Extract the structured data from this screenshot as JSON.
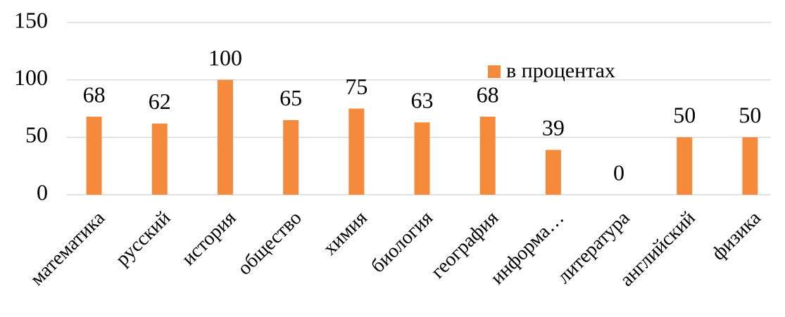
{
  "chart_data": {
    "type": "bar",
    "categories": [
      "математика",
      "русский",
      "история",
      "общество",
      "химия",
      "биология",
      "география",
      "информа…",
      "литература",
      "английский",
      "физика"
    ],
    "series": [
      {
        "name": "в процентах",
        "color": "#f58a3c",
        "values": [
          68,
          62,
          100,
          65,
          75,
          63,
          68,
          39,
          0,
          50,
          50
        ]
      }
    ],
    "ylim": [
      0,
      150
    ],
    "yticks": [
      0,
      50,
      100,
      150
    ],
    "grid": true,
    "legend": "top-right"
  }
}
